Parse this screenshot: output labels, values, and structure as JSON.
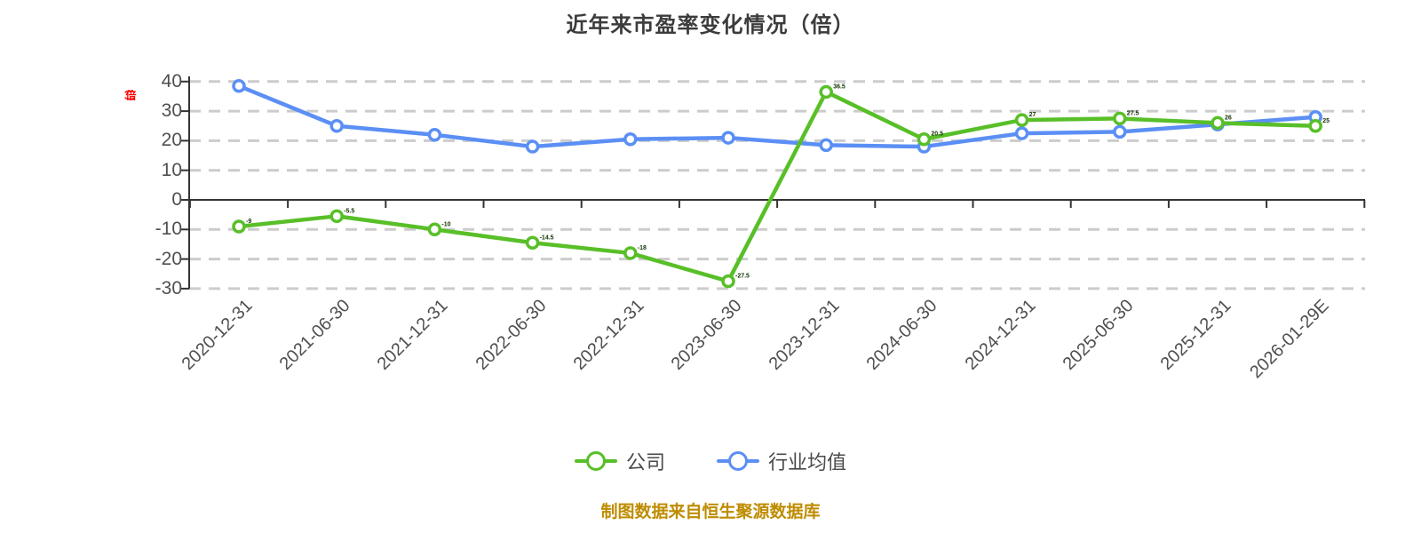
{
  "title": "近年来市盈率变化情况（倍）",
  "y_axis": {
    "unit_label": "(倍)",
    "unit_color": "#ff0000",
    "tick_labels": [
      "40",
      "30",
      "20",
      "10",
      "0",
      "-10",
      "-20",
      "-30"
    ]
  },
  "legend": {
    "items": [
      {
        "label": "公司",
        "color": "#58bf28"
      },
      {
        "label": "行业均值",
        "color": "#5b8ff5"
      }
    ]
  },
  "footer": {
    "text": "制图数据来自恒生聚源数据库",
    "color": "#be8c00"
  },
  "colors": {
    "grid": "#cccccc",
    "axis": "#333333",
    "tick_text": "#4f4f4f",
    "title_text": "#3c3c3c",
    "point_label": "#123300"
  },
  "chart_data": {
    "type": "line",
    "title": "近年来市盈率变化情况（倍）",
    "xlabel": "",
    "ylabel": "(倍)",
    "ylim": [
      -30,
      40
    ],
    "yticks": [
      40,
      30,
      20,
      10,
      0,
      -10,
      -20,
      -30
    ],
    "grid": "horizontal dashed",
    "legend_position": "bottom",
    "categories": [
      "2020-12-31",
      "2021-06-30",
      "2021-12-31",
      "2022-06-30",
      "2022-12-31",
      "2023-06-30",
      "2023-12-31",
      "2024-06-30",
      "2024-12-31",
      "2025-06-30",
      "2025-12-31",
      "2026-01-29E"
    ],
    "series": [
      {
        "name": "行业均值",
        "color": "#5b8ff5",
        "values": [
          38.5,
          25,
          22,
          18,
          20.5,
          21,
          18.5,
          18,
          22.5,
          23,
          25.5,
          28
        ],
        "show_point_labels": false
      },
      {
        "name": "公司",
        "color": "#58bf28",
        "values": [
          -9,
          -5.5,
          -10,
          -14.5,
          -18,
          -27.5,
          36.5,
          20.5,
          27,
          27.5,
          26,
          25
        ],
        "show_point_labels": true
      }
    ]
  }
}
